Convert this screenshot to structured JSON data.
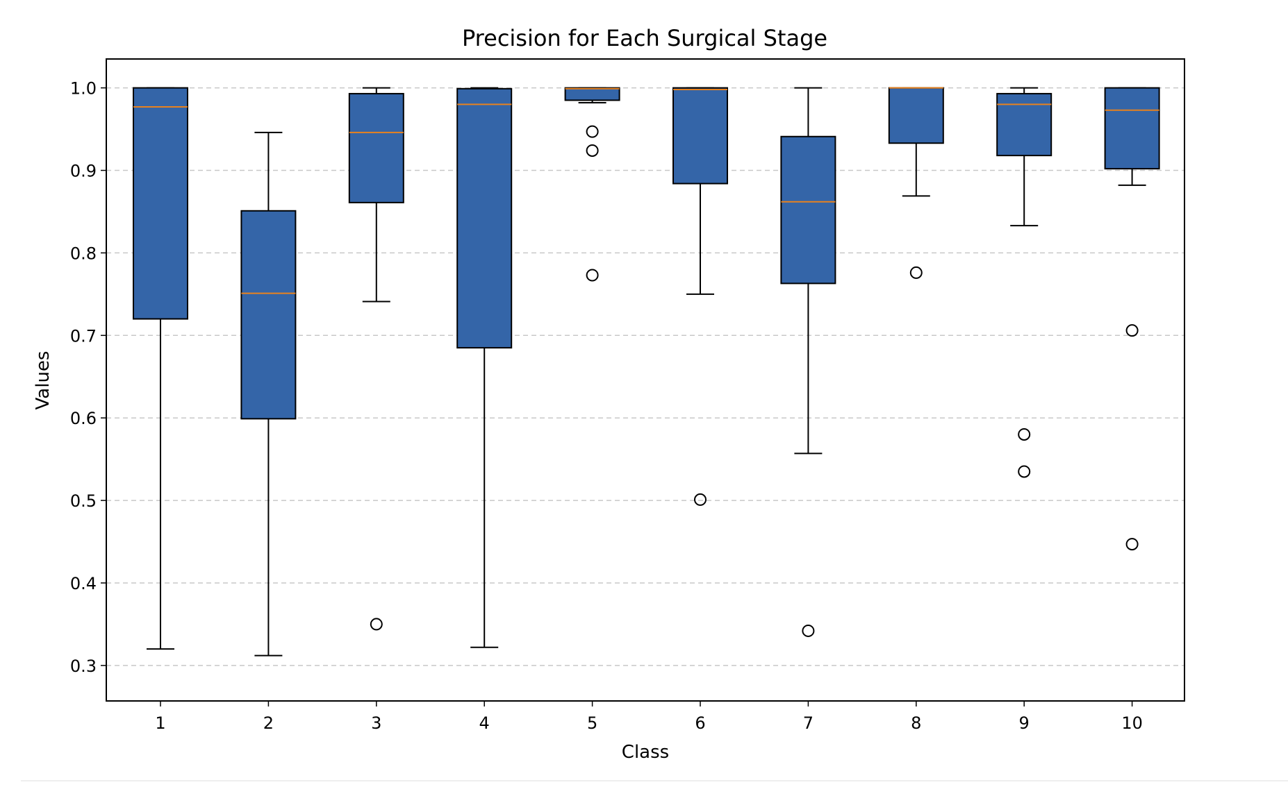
{
  "chart_data": {
    "type": "box",
    "title": "Precision for Each Surgical Stage",
    "xlabel": "Class",
    "ylabel": "Values",
    "ylim": [
      0.257,
      1.035
    ],
    "yticks": [
      0.3,
      0.4,
      0.5,
      0.6,
      0.7,
      0.8,
      0.9,
      1.0
    ],
    "ytick_labels": [
      "0.3",
      "0.4",
      "0.5",
      "0.6",
      "0.7",
      "0.8",
      "0.9",
      "1.0"
    ],
    "grid": "y-dashed",
    "categories": [
      "1",
      "2",
      "3",
      "4",
      "5",
      "6",
      "7",
      "8",
      "9",
      "10"
    ],
    "boxes": [
      {
        "label": "1",
        "whisker_low": 0.32,
        "q1": 0.72,
        "median": 0.977,
        "q3": 1.0,
        "whisker_high": 1.0,
        "outliers": []
      },
      {
        "label": "2",
        "whisker_low": 0.312,
        "q1": 0.599,
        "median": 0.751,
        "q3": 0.851,
        "whisker_high": 0.946,
        "outliers": []
      },
      {
        "label": "3",
        "whisker_low": 0.741,
        "q1": 0.861,
        "median": 0.946,
        "q3": 0.993,
        "whisker_high": 1.0,
        "outliers": [
          0.35
        ]
      },
      {
        "label": "4",
        "whisker_low": 0.322,
        "q1": 0.685,
        "median": 0.98,
        "q3": 0.999,
        "whisker_high": 1.0,
        "outliers": []
      },
      {
        "label": "5",
        "whisker_low": 0.982,
        "q1": 0.985,
        "median": 0.999,
        "q3": 1.0,
        "whisker_high": 1.0,
        "outliers": [
          0.947,
          0.924,
          0.773
        ]
      },
      {
        "label": "6",
        "whisker_low": 0.75,
        "q1": 0.884,
        "median": 0.998,
        "q3": 1.0,
        "whisker_high": 1.0,
        "outliers": [
          0.501
        ]
      },
      {
        "label": "7",
        "whisker_low": 0.557,
        "q1": 0.763,
        "median": 0.862,
        "q3": 0.941,
        "whisker_high": 1.0,
        "outliers": [
          0.342
        ]
      },
      {
        "label": "8",
        "whisker_low": 0.869,
        "q1": 0.933,
        "median": 1.0,
        "q3": 1.0,
        "whisker_high": 1.0,
        "outliers": [
          0.776
        ]
      },
      {
        "label": "9",
        "whisker_low": 0.833,
        "q1": 0.918,
        "median": 0.98,
        "q3": 0.993,
        "whisker_high": 1.0,
        "outliers": [
          0.58,
          0.535
        ]
      },
      {
        "label": "10",
        "whisker_low": 0.882,
        "q1": 0.902,
        "median": 0.973,
        "q3": 1.0,
        "whisker_high": 1.0,
        "outliers": [
          0.706,
          0.447
        ]
      }
    ],
    "colors": {
      "box_fill": "#3465a8",
      "box_edge": "#000000",
      "median": "#e8821e",
      "whisker": "#000000",
      "grid": "#c8c8c8",
      "outlier_edge": "#000000"
    }
  }
}
